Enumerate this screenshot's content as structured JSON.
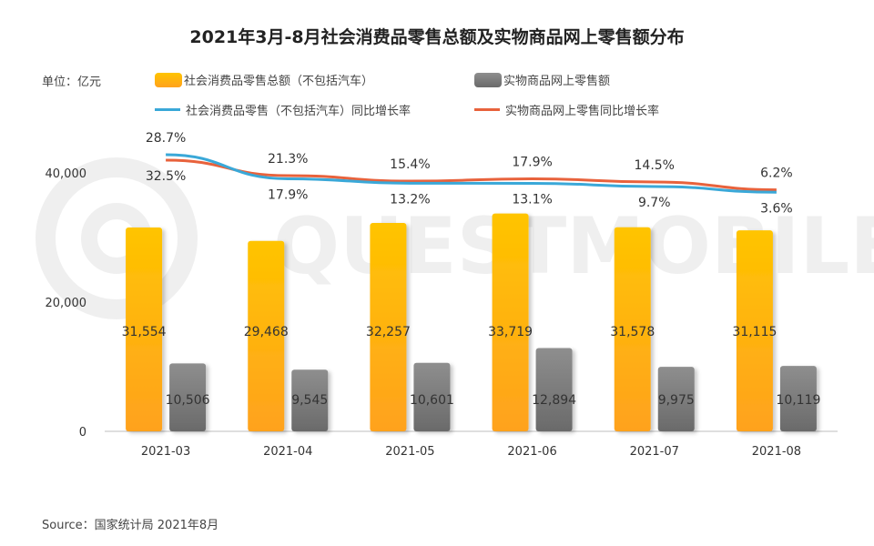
{
  "title": "2021年3月-8月社会消费品零售总额及实物商品网上零售额分布",
  "unit_label": "单位：亿元",
  "source": "Source：国家统计局 2021年8月",
  "watermark": "QUESTMOBILE",
  "legend": {
    "total_retail": "社会消费品零售总额（不包括汽车）",
    "online_retail": "实物商品网上零售额",
    "total_growth": "社会消费品零售（不包括汽车）同比增长率",
    "online_growth": "实物商品网上零售同比增长率"
  },
  "colors": {
    "yellow_top": "#FFC400",
    "yellow_bottom": "#FFA21E",
    "gray_top": "#8E8E8E",
    "gray_bottom": "#6A6A6A",
    "blue_line": "#3AA8D8",
    "red_line": "#E8623C"
  },
  "chart_data": {
    "type": "bar+line",
    "categories": [
      "2021-03",
      "2021-04",
      "2021-05",
      "2021-06",
      "2021-07",
      "2021-08"
    ],
    "y_ticks": [
      "0",
      "20,000",
      "40,000"
    ],
    "ylim": [
      0,
      45000
    ],
    "series": [
      {
        "name": "社会消费品零售总额（不包括汽车）",
        "kind": "bar",
        "values": [
          31554,
          29468,
          32257,
          33719,
          31578,
          31115
        ],
        "labels": [
          "31,554",
          "29,468",
          "32,257",
          "33,719",
          "31,578",
          "31,115"
        ]
      },
      {
        "name": "实物商品网上零售额",
        "kind": "bar",
        "values": [
          10506,
          9545,
          10601,
          12894,
          9975,
          10119
        ],
        "labels": [
          "10,506",
          "9,545",
          "10,601",
          "12,894",
          "9,975",
          "10,119"
        ]
      },
      {
        "name": "社会消费品零售（不包括汽车）同比增长率",
        "kind": "line",
        "unit": "%",
        "values": [
          32.5,
          17.9,
          13.2,
          13.1,
          9.7,
          3.6
        ],
        "labels": [
          "32.5%",
          "17.9%",
          "13.2%",
          "13.1%",
          "9.7%",
          "3.6%"
        ]
      },
      {
        "name": "实物商品网上零售同比增长率",
        "kind": "line",
        "unit": "%",
        "values": [
          28.7,
          21.3,
          15.4,
          17.9,
          14.5,
          6.2
        ],
        "labels": [
          "28.7%",
          "21.3%",
          "15.4%",
          "17.9%",
          "14.5%",
          "6.2%"
        ]
      }
    ]
  }
}
